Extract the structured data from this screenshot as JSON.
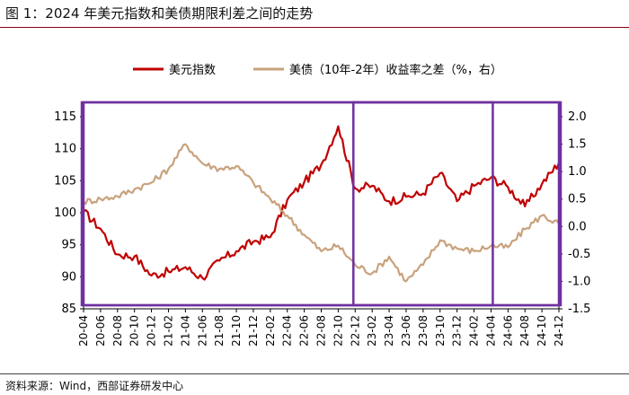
{
  "title": "图 1：2024 年美元指数和美债期限利差之间的走势",
  "source": "资料来源：Wind，西部证券研发中心",
  "chart_data": {
    "type": "line",
    "x": [
      "20-04",
      "20-06",
      "20-08",
      "20-10",
      "20-12",
      "21-02",
      "21-04",
      "21-06",
      "21-08",
      "21-10",
      "21-12",
      "22-02",
      "22-04",
      "22-06",
      "22-08",
      "22-10",
      "22-12",
      "23-02",
      "23-04",
      "23-06",
      "23-08",
      "23-10",
      "23-12",
      "24-02",
      "24-04",
      "24-06",
      "24-08",
      "24-10",
      "24-12"
    ],
    "left_axis": {
      "ylim": [
        85,
        115
      ],
      "ticks": [
        "85",
        "90",
        "95",
        "100",
        "105",
        "110",
        "115"
      ]
    },
    "right_axis": {
      "ylim": [
        -1.5,
        2.0
      ],
      "ticks": [
        "-1.5",
        "-1.0",
        "-0.5",
        "0.0",
        "0.5",
        "1.0",
        "1.5",
        "2.0"
      ]
    },
    "legend_position": "top-center",
    "series": [
      {
        "name": "美元指数",
        "axis": "left",
        "color": "#c00000",
        "values": [
          100.2,
          97.5,
          93.5,
          93.2,
          90.2,
          90.8,
          91.5,
          89.8,
          92.5,
          94.0,
          95.5,
          96.2,
          102.0,
          104.8,
          107.5,
          113.5,
          103.8,
          104.2,
          101.8,
          102.5,
          103.0,
          106.2,
          101.8,
          104.2,
          105.5,
          104.0,
          101.0,
          104.5,
          107.8
        ]
      },
      {
        "name": "美债（10年-2年）收益率之差（%，右）",
        "axis": "right",
        "color": "#c8a27c",
        "values": [
          0.45,
          0.5,
          0.55,
          0.68,
          0.8,
          1.05,
          1.5,
          1.15,
          1.05,
          1.1,
          0.8,
          0.5,
          0.2,
          -0.15,
          -0.45,
          -0.35,
          -0.7,
          -0.85,
          -0.55,
          -1.0,
          -0.7,
          -0.25,
          -0.4,
          -0.45,
          -0.35,
          -0.38,
          -0.05,
          0.2,
          0.05
        ]
      }
    ],
    "boxes": [
      {
        "from": "20-04",
        "to": "22-11"
      },
      {
        "from": "22-12",
        "to": "24-04"
      },
      {
        "from": "24-05",
        "to": "24-12"
      }
    ],
    "box_color": "#7030a0"
  }
}
